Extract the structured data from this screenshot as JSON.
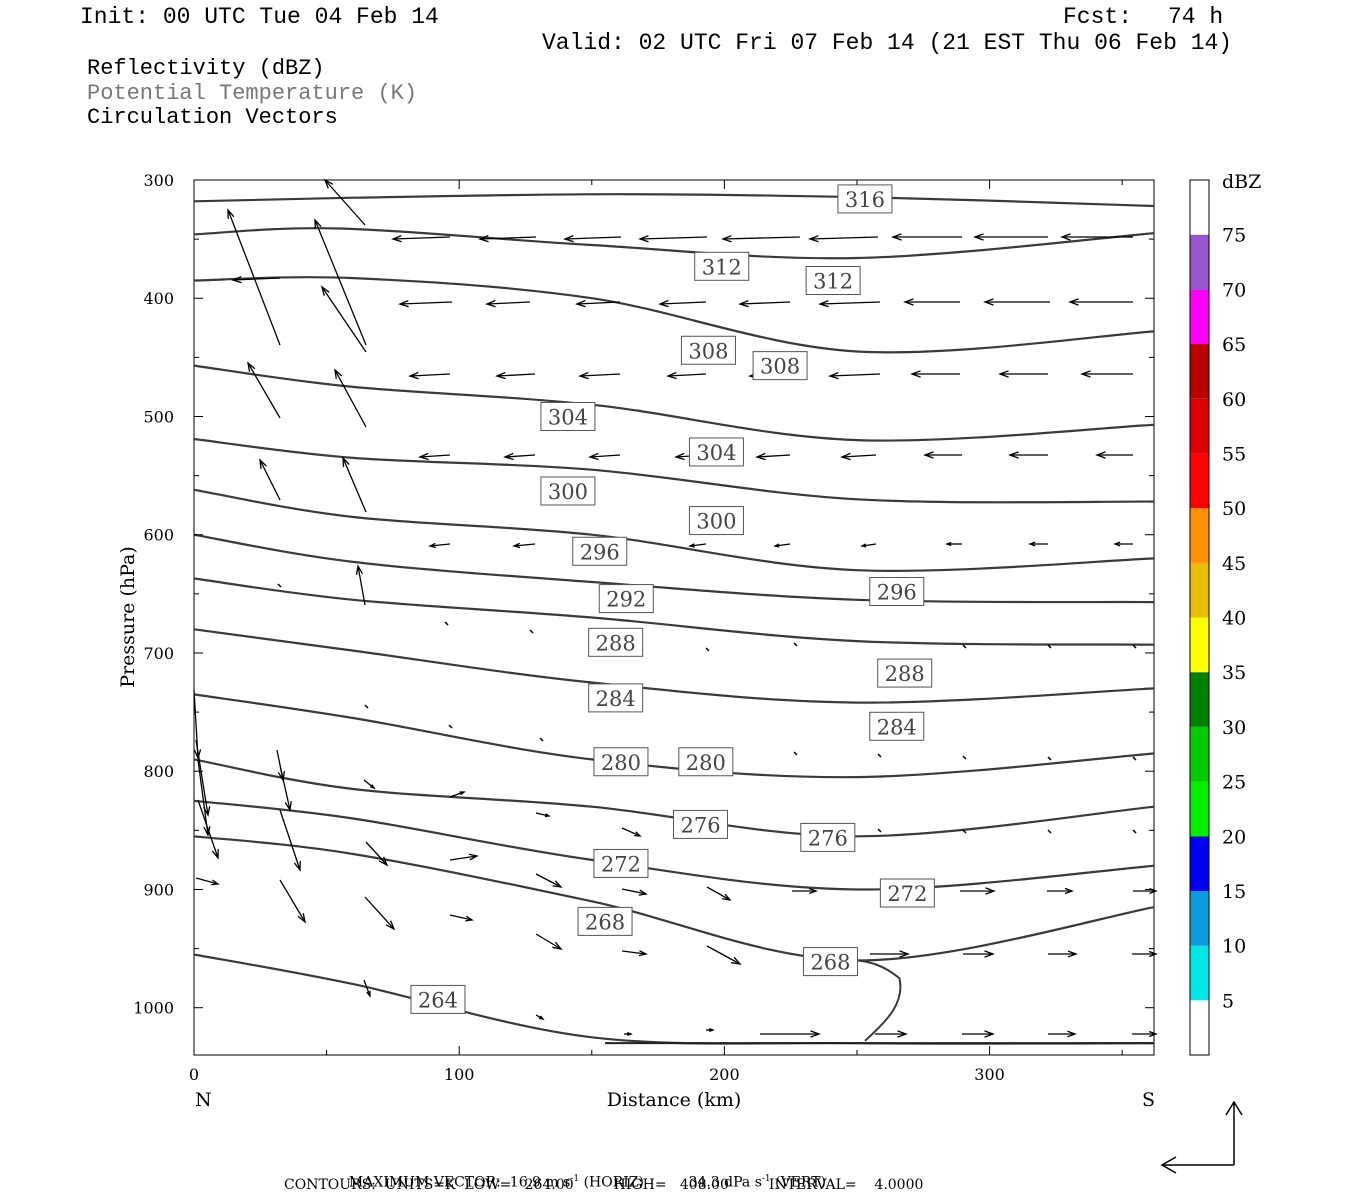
{
  "header": {
    "init": "Init: 00 UTC Tue 04 Feb 14",
    "fcst_label": "Fcst:",
    "fcst_value": "74 h",
    "valid": "Valid: 02 UTC Fri 07 Feb 14 (21 EST Thu 06 Feb 14)"
  },
  "fields": {
    "reflectivity": "Reflectivity (dBZ)",
    "theta": "Potential Temperature (K)",
    "vectors": "Circulation Vectors"
  },
  "footer": {
    "max_vector_label": "MAXIMUM VECTOR:",
    "max_horiz": "16.9 m s",
    "horiz_unit": "(HORIZ)",
    "max_vert": "34.3 dPa s",
    "vert_unit": "(VERT)",
    "exponent": "-1",
    "contours": "CONTOURS:  UNITS=K  LOW=   264.00         HIGH=   408.00         INTERVAL=    4.0000"
  },
  "chart_data": {
    "type": "cross-section",
    "xlabel": "Distance (km)",
    "ylabel": "Pressure (hPa)",
    "x_ticks": [
      0,
      100,
      200,
      300
    ],
    "y_ticks": [
      300,
      400,
      500,
      600,
      700,
      800,
      900,
      1000
    ],
    "xlim": [
      0,
      362
    ],
    "ylim": [
      300,
      1040
    ],
    "y_inverted": true,
    "end_left": "N",
    "end_right": "S",
    "colorbar": {
      "unit": "dBZ",
      "labels": [
        5,
        10,
        15,
        20,
        25,
        30,
        35,
        40,
        45,
        50,
        55,
        60,
        65,
        70,
        75
      ],
      "colors": [
        "#ffffff",
        "#00e5e5",
        "#0a9bd8",
        "#0000f0",
        "#00ee00",
        "#00cc00",
        "#008000",
        "#ffff00",
        "#e8c000",
        "#ff9000",
        "#ff0000",
        "#dd0000",
        "#bb0000",
        "#ff00ff",
        "#9955cc",
        "#ffffff"
      ]
    },
    "theta_contours": [
      {
        "level": 316,
        "points": [
          [
            0,
            318
          ],
          [
            60,
            315
          ],
          [
            160,
            312
          ],
          [
            260,
            315
          ],
          [
            362,
            322
          ]
        ]
      },
      {
        "level": 312,
        "points": [
          [
            0,
            346
          ],
          [
            55,
            341
          ],
          [
            150,
            355
          ],
          [
            250,
            366
          ],
          [
            362,
            345
          ]
        ]
      },
      {
        "level": 308,
        "points": [
          [
            0,
            385
          ],
          [
            60,
            383
          ],
          [
            150,
            400
          ],
          [
            250,
            445
          ],
          [
            362,
            428
          ]
        ]
      },
      {
        "level": 304,
        "points": [
          [
            0,
            457
          ],
          [
            60,
            475
          ],
          [
            150,
            490
          ],
          [
            250,
            520
          ],
          [
            362,
            507
          ]
        ]
      },
      {
        "level": 300,
        "points": [
          [
            0,
            519
          ],
          [
            60,
            535
          ],
          [
            150,
            545
          ],
          [
            250,
            570
          ],
          [
            362,
            572
          ]
        ]
      },
      {
        "level": 296,
        "points": [
          [
            0,
            562
          ],
          [
            60,
            585
          ],
          [
            150,
            600
          ],
          [
            250,
            630
          ],
          [
            362,
            620
          ]
        ]
      },
      {
        "level": 292,
        "points": [
          [
            0,
            600
          ],
          [
            60,
            623
          ],
          [
            150,
            640
          ],
          [
            250,
            655
          ],
          [
            362,
            657
          ]
        ]
      },
      {
        "level": 288,
        "points": [
          [
            0,
            637
          ],
          [
            60,
            655
          ],
          [
            150,
            670
          ],
          [
            250,
            690
          ],
          [
            362,
            693
          ]
        ]
      },
      {
        "level": 284,
        "points": [
          [
            0,
            680
          ],
          [
            60,
            698
          ],
          [
            150,
            725
          ],
          [
            250,
            742
          ],
          [
            362,
            730
          ]
        ]
      },
      {
        "level": 280,
        "points": [
          [
            0,
            735
          ],
          [
            60,
            755
          ],
          [
            150,
            790
          ],
          [
            250,
            805
          ],
          [
            362,
            785
          ]
        ]
      },
      {
        "level": 276,
        "points": [
          [
            0,
            790
          ],
          [
            60,
            815
          ],
          [
            150,
            830
          ],
          [
            250,
            855
          ],
          [
            362,
            830
          ]
        ]
      },
      {
        "level": 272,
        "points": [
          [
            0,
            825
          ],
          [
            60,
            840
          ],
          [
            150,
            875
          ],
          [
            250,
            900
          ],
          [
            362,
            880
          ]
        ]
      },
      {
        "level": 268,
        "points": [
          [
            0,
            855
          ],
          [
            60,
            870
          ],
          [
            150,
            910
          ],
          [
            250,
            960
          ],
          [
            362,
            915
          ]
        ]
      },
      {
        "level": 264,
        "points": [
          [
            0,
            955
          ],
          [
            60,
            980
          ],
          [
            150,
            1025
          ],
          [
            250,
            1030
          ],
          [
            362,
            1030
          ]
        ]
      }
    ],
    "theta_labels": [
      {
        "level": 316,
        "x": 253,
        "p": 316
      },
      {
        "level": 312,
        "x": 199,
        "p": 373
      },
      {
        "level": 312,
        "x": 241,
        "p": 385
      },
      {
        "level": 308,
        "x": 194,
        "p": 444
      },
      {
        "level": 308,
        "x": 221,
        "p": 457
      },
      {
        "level": 304,
        "x": 141,
        "p": 500
      },
      {
        "level": 304,
        "x": 197,
        "p": 530
      },
      {
        "level": 300,
        "x": 141,
        "p": 563
      },
      {
        "level": 300,
        "x": 197,
        "p": 588
      },
      {
        "level": 296,
        "x": 153,
        "p": 614
      },
      {
        "level": 296,
        "x": 265,
        "p": 648
      },
      {
        "level": 292,
        "x": 163,
        "p": 654
      },
      {
        "level": 288,
        "x": 159,
        "p": 691
      },
      {
        "level": 288,
        "x": 268,
        "p": 717
      },
      {
        "level": 284,
        "x": 159,
        "p": 738
      },
      {
        "level": 284,
        "x": 265,
        "p": 762
      },
      {
        "level": 280,
        "x": 161,
        "p": 792
      },
      {
        "level": 280,
        "x": 193,
        "p": 792
      },
      {
        "level": 276,
        "x": 191,
        "p": 845
      },
      {
        "level": 276,
        "x": 239,
        "p": 856
      },
      {
        "level": 272,
        "x": 161,
        "p": 878
      },
      {
        "level": 272,
        "x": 269,
        "p": 903
      },
      {
        "level": 268,
        "x": 155,
        "p": 927
      },
      {
        "level": 268,
        "x": 240,
        "p": 961
      },
      {
        "level": 264,
        "x": 92,
        "p": 993
      }
    ]
  }
}
